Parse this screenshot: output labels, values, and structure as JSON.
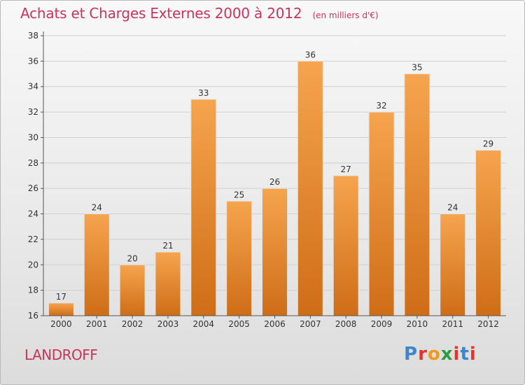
{
  "header": {
    "title": "Achats et Charges Externes 2000 à 2012",
    "unit": "(en milliers d'€)"
  },
  "footer": {
    "place": "LANDROFF",
    "logo_text": "Proxiti"
  },
  "colors": {
    "title": "#c8345c",
    "bar_top": "#f6a44e",
    "bar_bottom": "#cf6d17",
    "logo_letters": [
      "#3f86c8",
      "#e8322a",
      "#f29a1b",
      "#2f9a3f",
      "#e8322a",
      "#3f86c8",
      "#e8322a"
    ]
  },
  "chart_data": {
    "type": "bar",
    "title": "Achats et Charges Externes 2000 à 2012",
    "subtitle": "(en milliers d'€)",
    "categories": [
      "2000",
      "2001",
      "2002",
      "2003",
      "2004",
      "2005",
      "2006",
      "2007",
      "2008",
      "2009",
      "2010",
      "2011",
      "2012"
    ],
    "values": [
      17,
      24,
      20,
      21,
      33,
      25,
      26,
      36,
      27,
      32,
      35,
      24,
      29
    ],
    "ylim": [
      16,
      38
    ],
    "yticks": [
      16,
      18,
      20,
      22,
      24,
      26,
      28,
      30,
      32,
      34,
      36,
      38
    ],
    "grid": true,
    "data_labels": true
  }
}
